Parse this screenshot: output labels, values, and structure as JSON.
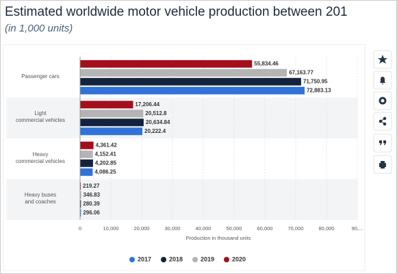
{
  "chart_data": {
    "type": "hbar",
    "title": "Estimated worldwide motor vehicle production between 201",
    "subtitle": "(in 1,000 units)",
    "x_label": "Production in thousand units",
    "categories": [
      "Passenger cars",
      "Light\ncommercial vehicles",
      "Heavy\ncommercial vehicles",
      "Heavy buses\nand coaches"
    ],
    "series": [
      {
        "name": "2017",
        "color": "#2f73d8",
        "values": [
          72883.13,
          20222.4,
          4086.25,
          296.06
        ],
        "value_labels": [
          "72,883.13",
          "20,222.4",
          "4,086.25",
          "296.06"
        ]
      },
      {
        "name": "2018",
        "color": "#14233d",
        "values": [
          71750.95,
          20634.84,
          4202.85,
          280.39
        ],
        "value_labels": [
          "71,750.95",
          "20,634.84",
          "4,202.85",
          "280.39"
        ]
      },
      {
        "name": "2019",
        "color": "#b4b4b4",
        "values": [
          67163.77,
          20512.8,
          4152.41,
          346.83
        ],
        "value_labels": [
          "67,163.77",
          "20,512.8",
          "4,152.41",
          "346.83"
        ]
      },
      {
        "name": "2020",
        "color": "#a30f1c",
        "values": [
          55834.46,
          17206.44,
          4361.42,
          219.27
        ],
        "value_labels": [
          "55,834.46",
          "17,206.44",
          "4,361.42",
          "219.27"
        ]
      }
    ],
    "xlim": [
      0,
      90000
    ],
    "xticks": [
      0,
      {
        "value": 10000,
        "label": "10,000"
      },
      {
        "value": 20000,
        "label": "20,000"
      },
      {
        "value": 30000,
        "label": "30,000"
      },
      {
        "value": 40000,
        "label": "40,000"
      },
      {
        "value": 50000,
        "label": "50,000"
      },
      {
        "value": 60000,
        "label": "60,000"
      },
      {
        "value": 70000,
        "label": "70,000"
      },
      {
        "value": 80000,
        "label": "80,000"
      },
      {
        "value": 90000,
        "label": "90,..."
      }
    ],
    "grid": true
  }
}
